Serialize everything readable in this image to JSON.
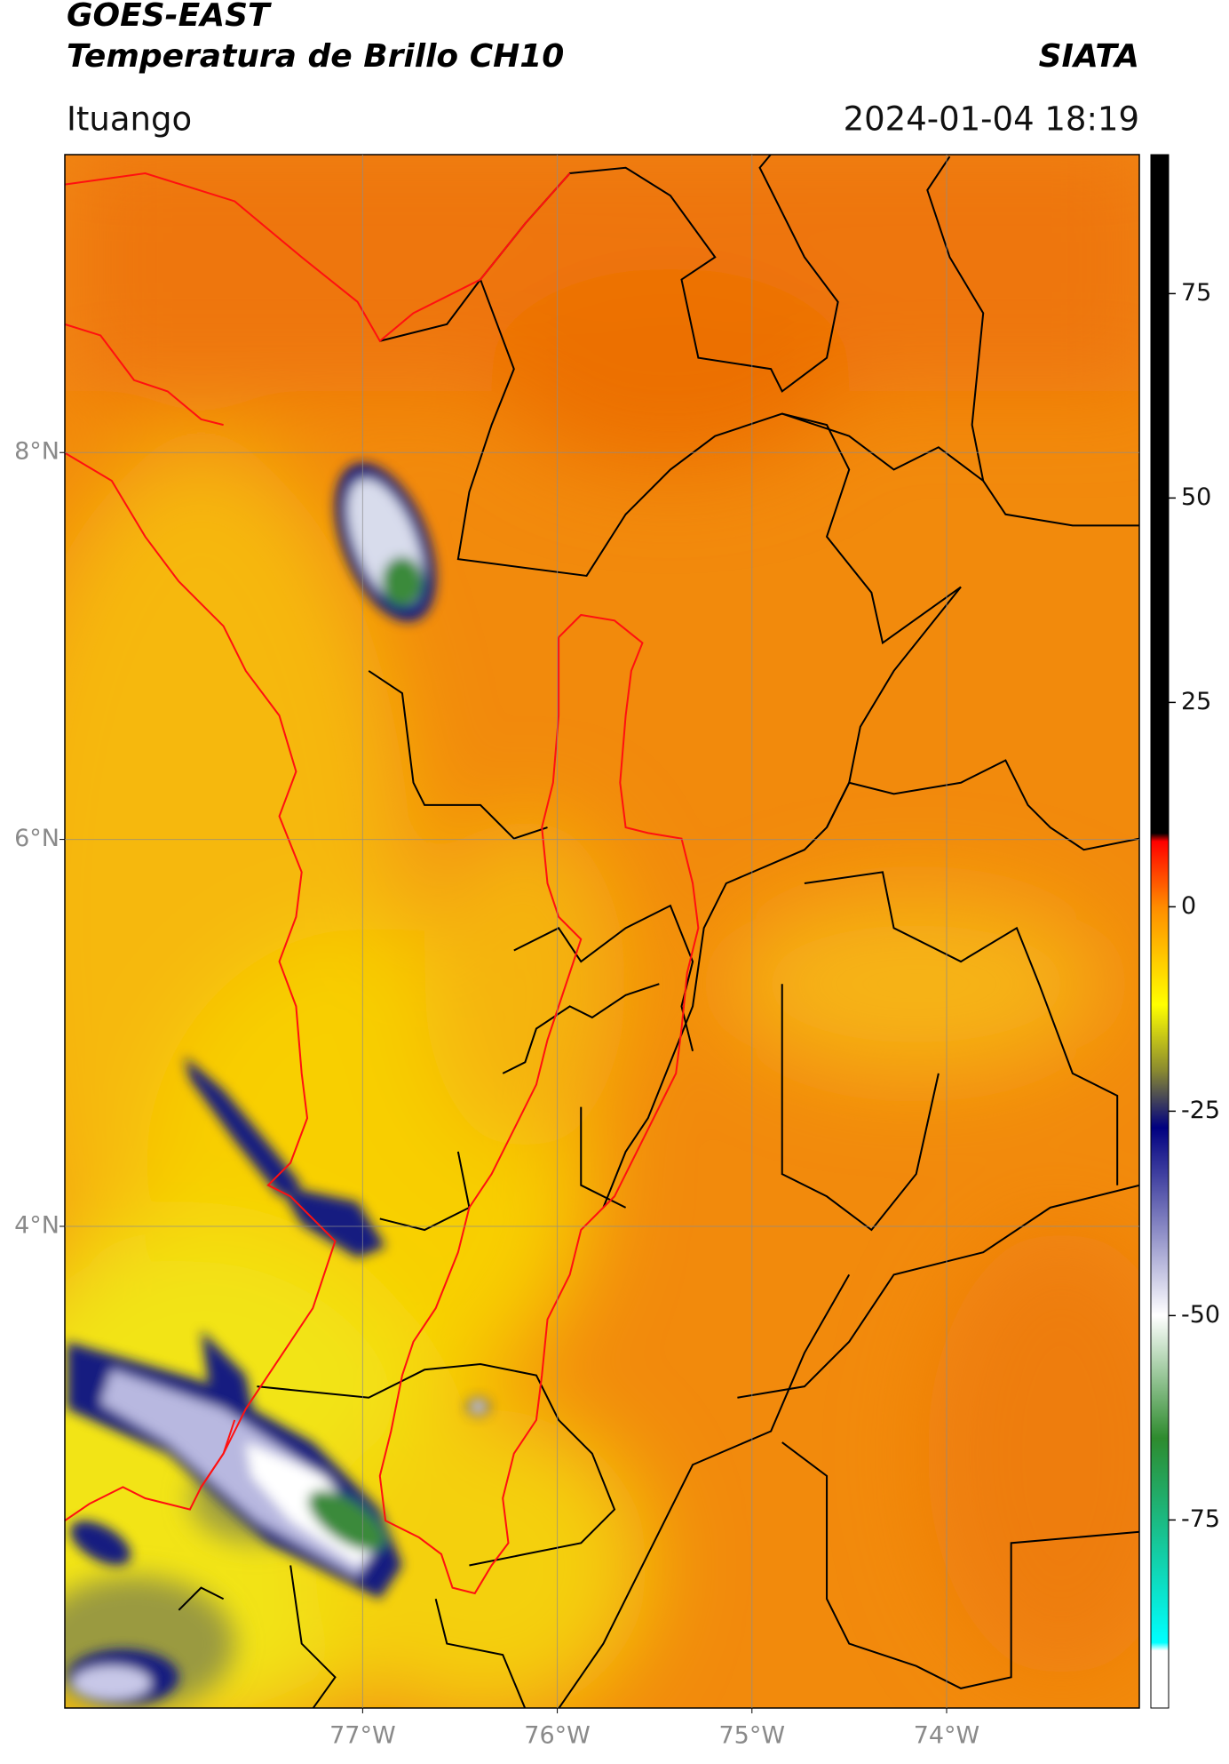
{
  "header": {
    "title": "GOES-EAST",
    "subtitle": "Temperatura de Brillo CH10",
    "credit": "SIATA",
    "region": "Ituango",
    "timestamp": "2024-01-04 18:19"
  },
  "map": {
    "lonlim": [
      -78.53,
      -73.01
    ],
    "latlim": [
      1.51,
      9.54
    ],
    "xticks": [
      {
        "value": -77,
        "label": "77°W"
      },
      {
        "value": -76,
        "label": "76°W"
      },
      {
        "value": -75,
        "label": "75°W"
      },
      {
        "value": -74,
        "label": "74°W"
      }
    ],
    "yticks": [
      {
        "value": 8,
        "label": "8°N"
      },
      {
        "value": 6,
        "label": "6°N"
      },
      {
        "value": 4,
        "label": "4°N"
      }
    ],
    "grid": true
  },
  "colorbar": {
    "lim": [
      -98,
      92
    ],
    "ticks": [
      75,
      50,
      25,
      0,
      -25,
      -50,
      -75
    ],
    "stops": [
      {
        "value": 92,
        "color": "#000000"
      },
      {
        "value": 9,
        "color": "#000000"
      },
      {
        "value": 8,
        "color": "#ff0000"
      },
      {
        "value": 0,
        "color": "#ff8c00"
      },
      {
        "value": -12,
        "color": "#ffff00"
      },
      {
        "value": -20,
        "color": "#8a8a30"
      },
      {
        "value": -27,
        "color": "#000080"
      },
      {
        "value": -50,
        "color": "#ffffff"
      },
      {
        "value": -65,
        "color": "#2e8b2e"
      },
      {
        "value": -90,
        "color": "#00ffff"
      },
      {
        "value": -91,
        "color": "#ffffff"
      },
      {
        "value": -98,
        "color": "#ffffff"
      }
    ]
  }
}
